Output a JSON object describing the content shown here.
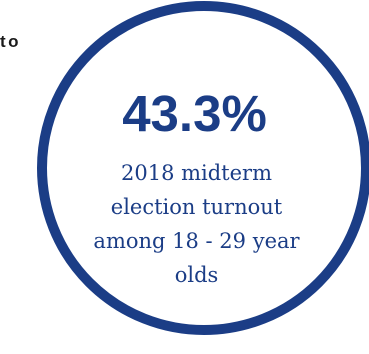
{
  "left_fragment": "to",
  "stat": {
    "value": "43.3%",
    "caption_lines": [
      "2018 midterm",
      "election turnout",
      "among 18 - 29 year",
      "olds"
    ]
  },
  "colors": {
    "accent": "#1b3d86",
    "text_dark": "#1a1a1a",
    "background": "#ffffff"
  }
}
